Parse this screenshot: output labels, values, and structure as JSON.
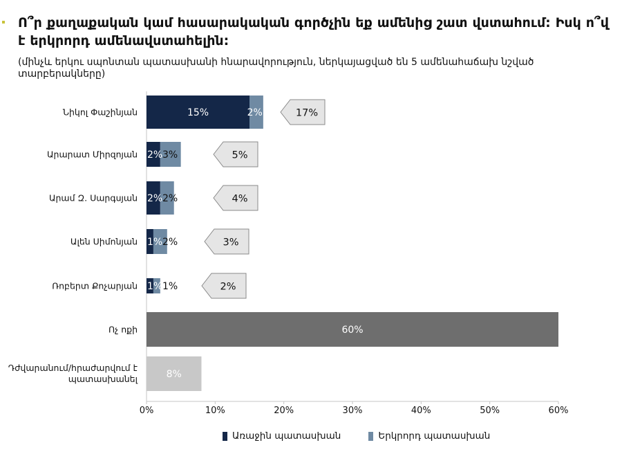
{
  "title": "Ո՞ր քաղաքական կամ հասարակական գործչին եք ամենից շատ վստահում: Իսկ ո՞վ է երկրորդ ամենավստահելին:",
  "subtitle": "(մինչև երկու սպոնտան պատասխանի հնարավորություն, ներկայացված են 5 ամենահաճախ նշված տարբերակները)",
  "colors": {
    "first": "#142748",
    "second": "#6f8aa3",
    "none": "#6e6e6e",
    "refuse": "#c8c8c8",
    "callout_fill": "#e5e5e5",
    "callout_stroke": "#8a8a8a"
  },
  "chart_data": {
    "type": "bar",
    "orientation": "horizontal",
    "stacked": true,
    "categories": [
      "Նիկոլ Փաշինյան",
      "Արարատ Միրզոյան",
      "Արամ Զ. Սարգսյան",
      "Ալեն Սիմոնյան",
      "Ռոբերտ Քոչարյան",
      "Ոչ ոքի",
      "Դժվարանում/հրաժարվում է պատասխանել"
    ],
    "series": [
      {
        "name": "Առաջին պատասխան",
        "values": [
          15,
          2,
          2,
          1,
          1,
          null,
          null
        ],
        "labels": [
          "15%",
          "2%",
          "2%",
          "1%",
          "1%",
          "",
          ""
        ]
      },
      {
        "name": "Երկրորդ պատասխան",
        "values": [
          2,
          3,
          2,
          2,
          1,
          null,
          null
        ],
        "labels": [
          "2%",
          "3%",
          "2%",
          "2%",
          "1%",
          "",
          ""
        ]
      }
    ],
    "single_values": [
      null,
      null,
      null,
      null,
      null,
      60,
      8
    ],
    "single_labels": [
      "",
      "",
      "",
      "",
      "",
      "60%",
      "8%"
    ],
    "totals": [
      "17%",
      "5%",
      "4%",
      "3%",
      "2%",
      "",
      ""
    ],
    "xticks": [
      "0%",
      "10%",
      "20%",
      "30%",
      "40%",
      "50%",
      "60%"
    ],
    "xlim": [
      0,
      60
    ]
  }
}
